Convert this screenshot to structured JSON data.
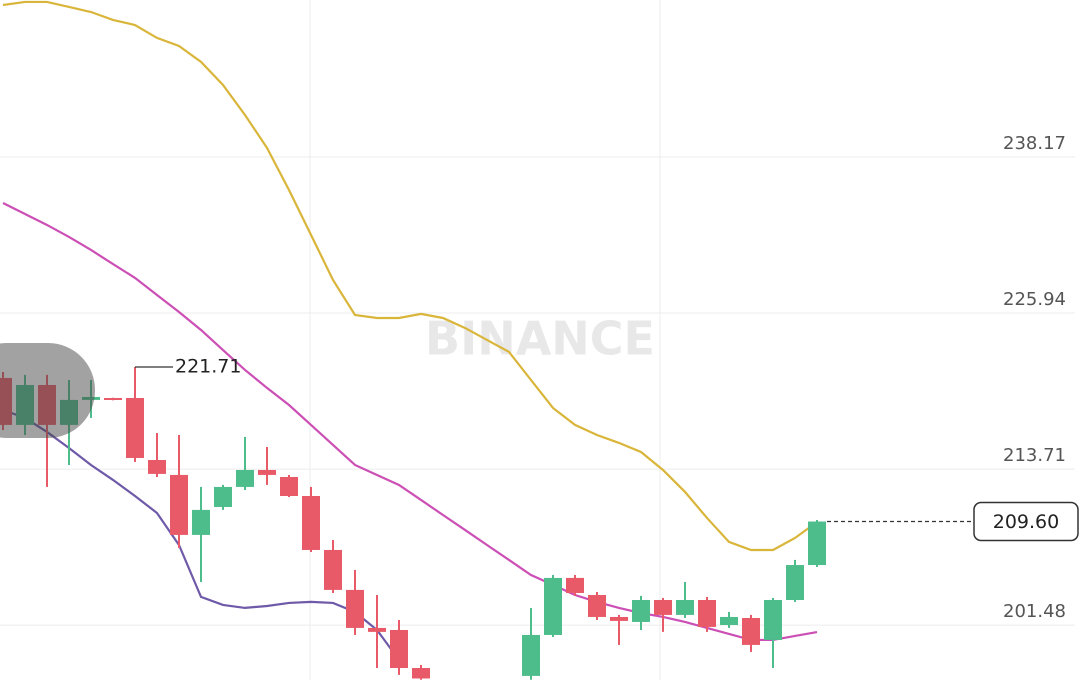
{
  "chart_data": {
    "type": "candlestick",
    "watermark": "BINANCE",
    "up_color": "#4dbd8b",
    "down_color": "#e85a67",
    "open": [
      220.85,
      217.17,
      220.3,
      217.17,
      219.13,
      219.28,
      219.28,
      214.42,
      213.25,
      208.55,
      210.74,
      212.31,
      213.64,
      213.09,
      211.6,
      207.37,
      204.24,
      201.26,
      201.1,
      198.12,
      null,
      null,
      null,
      null,
      197.5,
      200.71,
      205.18,
      203.84,
      202.12,
      201.73,
      203.45,
      202.28,
      203.45,
      201.49,
      202.04,
      200.32,
      203.45,
      206.19
    ],
    "high": [
      221.32,
      221.09,
      221.09,
      220.69,
      220.69,
      219.3,
      221.71,
      216.54,
      216.38,
      212.31,
      212.47,
      216.23,
      215.44,
      213.25,
      212.31,
      208.15,
      205.8,
      203.84,
      201.88,
      198.36,
      null,
      null,
      null,
      null,
      202.82,
      205.41,
      205.41,
      204.08,
      202.28,
      203.77,
      203.61,
      204.86,
      203.69,
      202.51,
      202.28,
      203.61,
      206.59,
      209.72
    ],
    "low": [
      216.77,
      216.38,
      212.31,
      214.03,
      217.72,
      219.1,
      214.27,
      213.09,
      207.53,
      204.86,
      210.51,
      212.07,
      212.47,
      211.52,
      207.21,
      204.0,
      200.71,
      198.12,
      197.58,
      197.2,
      null,
      null,
      null,
      null,
      197.2,
      200.55,
      203.77,
      201.88,
      199.93,
      201.1,
      200.95,
      202.04,
      200.95,
      201.26,
      199.38,
      198.12,
      203.3,
      206.04
    ],
    "close": [
      217.17,
      220.3,
      217.17,
      219.13,
      219.36,
      219.13,
      214.58,
      213.33,
      208.55,
      210.51,
      212.31,
      213.64,
      213.25,
      211.6,
      207.37,
      204.24,
      201.26,
      200.95,
      198.12,
      197.3,
      null,
      null,
      null,
      null,
      200.71,
      205.18,
      204.0,
      202.12,
      201.81,
      203.45,
      202.28,
      203.45,
      201.34,
      202.12,
      199.93,
      203.45,
      206.19,
      209.6
    ],
    "last_price_label": "209.60",
    "lines": [
      {
        "color": "#d9b53a",
        "values": [
          250.08,
          250.32,
          250.32,
          249.93,
          249.53,
          248.91,
          248.51,
          247.5,
          246.87,
          245.62,
          243.81,
          241.46,
          238.88,
          235.58,
          232.06,
          228.53,
          225.79,
          225.55,
          225.55,
          225.87,
          225.55,
          224.77,
          223.83,
          222.89,
          220.69,
          218.5,
          217.17,
          216.38,
          215.76,
          215.05,
          213.64,
          211.92,
          209.88,
          208.0,
          207.37,
          207.37,
          208.31,
          209.56
        ]
      },
      {
        "color": "#cc4fb5",
        "values": [
          234.56,
          233.7,
          232.84,
          231.9,
          230.88,
          229.78,
          228.69,
          227.35,
          226.02,
          224.61,
          223.04,
          221.48,
          220.07,
          218.73,
          217.17,
          215.6,
          214.03,
          213.25,
          212.46,
          211.29,
          210.11,
          208.94,
          207.76,
          206.59,
          205.41,
          204.63,
          203.84,
          203.3,
          202.83,
          202.43,
          202.12,
          201.73,
          201.26,
          200.79,
          200.32,
          200.32,
          200.63,
          200.94
        ]
      },
      {
        "color": "#6e5aa8",
        "values": [
          218.34,
          217.72,
          216.62,
          215.36,
          214.03,
          212.86,
          211.6,
          210.27,
          207.76,
          203.69,
          203.06,
          202.83,
          202.98,
          203.22,
          203.3,
          203.22,
          202.51,
          201.1,
          198.75,
          null,
          null,
          null,
          null,
          null,
          null,
          null,
          null,
          null,
          null,
          null,
          null,
          null,
          null,
          null,
          null,
          null,
          null,
          null
        ]
      }
    ],
    "ylim": [
      197.18,
      250.47
    ],
    "yticks": [
      238.17,
      225.94,
      213.71,
      201.48
    ],
    "grid": true
  }
}
